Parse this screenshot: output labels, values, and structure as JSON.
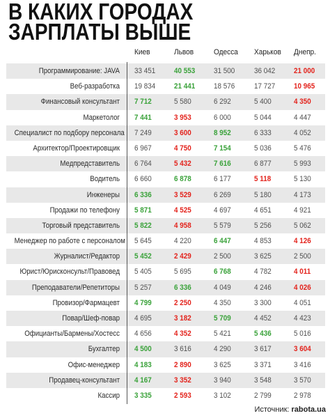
{
  "chart_data": {
    "type": "table",
    "title": [
      "В КАКИХ ГОРОДАХ",
      "ЗАРПЛАТЫ ВЫШЕ"
    ],
    "columns": [
      "Киев",
      "Львов",
      "Одесса",
      "Харьков",
      "Днепр."
    ],
    "rows": [
      {
        "label": "Программирование: JAVA",
        "values": [
          33451,
          40553,
          31500,
          36042,
          21000
        ]
      },
      {
        "label": "Веб-разработка",
        "values": [
          19834,
          21441,
          18576,
          17727,
          10965
        ]
      },
      {
        "label": "Финансовый консультант",
        "values": [
          7712,
          5580,
          6292,
          5400,
          4350
        ]
      },
      {
        "label": "Маркетолог",
        "values": [
          7441,
          3953,
          6000,
          5044,
          4447
        ]
      },
      {
        "label": "Специалист по подбору персонала",
        "values": [
          7249,
          3600,
          8952,
          6333,
          4052
        ]
      },
      {
        "label": "Архитектор/Проектировщик",
        "values": [
          6967,
          4750,
          7154,
          5036,
          5476
        ]
      },
      {
        "label": "Медпредставитель",
        "values": [
          6764,
          5432,
          7616,
          6877,
          5993
        ]
      },
      {
        "label": "Водитель",
        "values": [
          6660,
          6878,
          6177,
          5118,
          5130
        ]
      },
      {
        "label": "Инженеры",
        "values": [
          6336,
          3529,
          6269,
          5180,
          4173
        ]
      },
      {
        "label": "Продажи по телефону",
        "values": [
          5871,
          4525,
          4697,
          4651,
          4921
        ]
      },
      {
        "label": "Торговый представитель",
        "values": [
          5822,
          4958,
          5579,
          5256,
          5062
        ]
      },
      {
        "label": "Менеджер по работе с персоналом",
        "values": [
          5645,
          4220,
          6447,
          4853,
          4126
        ]
      },
      {
        "label": "Журналист/Редактор",
        "values": [
          5452,
          2429,
          2500,
          3625,
          2500
        ]
      },
      {
        "label": "Юрист/Юрисконсульт/Правовед",
        "values": [
          5405,
          5695,
          6768,
          4782,
          4011
        ]
      },
      {
        "label": "Преподаватели/Репетиторы",
        "values": [
          5257,
          6336,
          4049,
          4246,
          4026
        ]
      },
      {
        "label": "Провизор/Фармацевт",
        "values": [
          4799,
          2250,
          4350,
          3300,
          4051
        ]
      },
      {
        "label": "Повар/Шеф-повар",
        "values": [
          4695,
          3182,
          5709,
          4452,
          4423
        ]
      },
      {
        "label": "Официанты/Бармены/Хостесс",
        "values": [
          4656,
          4352,
          5421,
          5436,
          5016
        ]
      },
      {
        "label": "Бухгалтер",
        "values": [
          4500,
          3616,
          4290,
          3617,
          3604
        ]
      },
      {
        "label": "Офис-менеджер",
        "values": [
          4183,
          2890,
          3625,
          3371,
          3416
        ]
      },
      {
        "label": "Продавец-консультант",
        "values": [
          4167,
          3352,
          3940,
          3548,
          3570
        ]
      },
      {
        "label": "Кассир",
        "values": [
          3335,
          2593,
          3102,
          2799,
          2978
        ]
      }
    ]
  },
  "colors": {
    "highest": "#3aa23a",
    "lowest": "#e3231c",
    "regular": "#505050"
  },
  "source": {
    "label": "Источник:",
    "site": "rabota.ua"
  }
}
